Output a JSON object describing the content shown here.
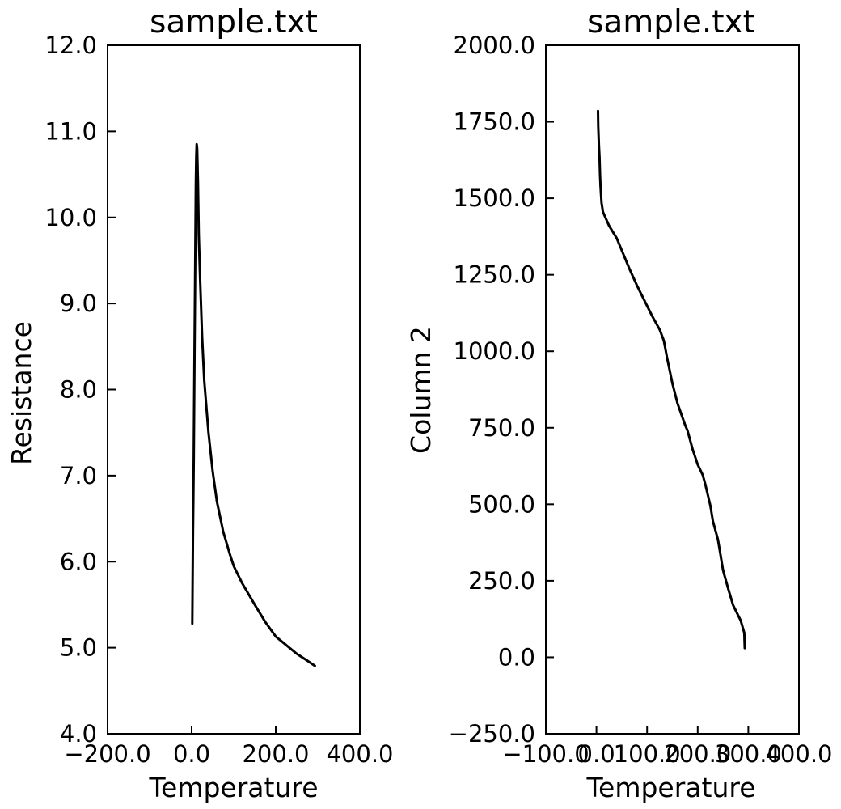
{
  "chart_data": [
    {
      "type": "line",
      "title": "sample.txt",
      "xlabel": "Temperature",
      "ylabel": "Resistance",
      "xlim": [
        -200,
        400
      ],
      "ylim": [
        4,
        12
      ],
      "xticks": [
        -200,
        0,
        200,
        400
      ],
      "xtick_labels": [
        "−200.0",
        "0.0",
        "200.0",
        "400.0"
      ],
      "yticks": [
        4,
        5,
        6,
        7,
        8,
        9,
        10,
        11,
        12
      ],
      "ytick_labels": [
        "4.0",
        "5.0",
        "6.0",
        "7.0",
        "8.0",
        "9.0",
        "10.0",
        "11.0",
        "12.0"
      ],
      "series": [
        {
          "name": "Resistance",
          "x": [
            1.5,
            3,
            5,
            7,
            9,
            10,
            11,
            12,
            13,
            15,
            17,
            20,
            25,
            30,
            40,
            50,
            60,
            75,
            90,
            100,
            120,
            150,
            175,
            200,
            250,
            275,
            293
          ],
          "y": [
            5.28,
            6.3,
            7.2,
            8.5,
            9.8,
            10.4,
            10.7,
            10.85,
            10.8,
            10.4,
            9.8,
            9.3,
            8.6,
            8.1,
            7.5,
            7.05,
            6.7,
            6.35,
            6.1,
            5.95,
            5.75,
            5.5,
            5.3,
            5.13,
            4.93,
            4.85,
            4.79
          ]
        }
      ]
    },
    {
      "type": "line",
      "title": "sample.txt",
      "xlabel": "Temperature",
      "ylabel": "Column 2",
      "xlim": [
        -100,
        400
      ],
      "ylim": [
        -250,
        2000
      ],
      "xticks": [
        -100,
        0,
        100,
        200,
        300,
        400
      ],
      "xtick_labels": [
        "−100.0",
        "0.0",
        "100.0",
        "200.0",
        "300.0",
        "400.0"
      ],
      "yticks": [
        -250,
        0,
        250,
        500,
        750,
        1000,
        1250,
        1500,
        1750,
        2000
      ],
      "ytick_labels": [
        "−250.0",
        "0.0",
        "250.0",
        "500.0",
        "750.0",
        "1000.0",
        "1250.0",
        "1500.0",
        "1750.0",
        "2000.0"
      ],
      "series": [
        {
          "name": "Column 2",
          "x": [
            3,
            3.5,
            5,
            6,
            7,
            8,
            10,
            13,
            17,
            25,
            40,
            50,
            65,
            80,
            95,
            110,
            125,
            133,
            140,
            150,
            160,
            175,
            180,
            190,
            200,
            210,
            215,
            225,
            230,
            240,
            245,
            250,
            260,
            270,
            285,
            292,
            293
          ],
          "y": [
            1785,
            1735,
            1670,
            1635,
            1580,
            1540,
            1485,
            1455,
            1440,
            1410,
            1370,
            1330,
            1270,
            1215,
            1165,
            1115,
            1070,
            1035,
            975,
            895,
            830,
            760,
            740,
            680,
            630,
            595,
            565,
            495,
            445,
            385,
            335,
            285,
            225,
            170,
            120,
            80,
            30
          ]
        }
      ]
    }
  ]
}
